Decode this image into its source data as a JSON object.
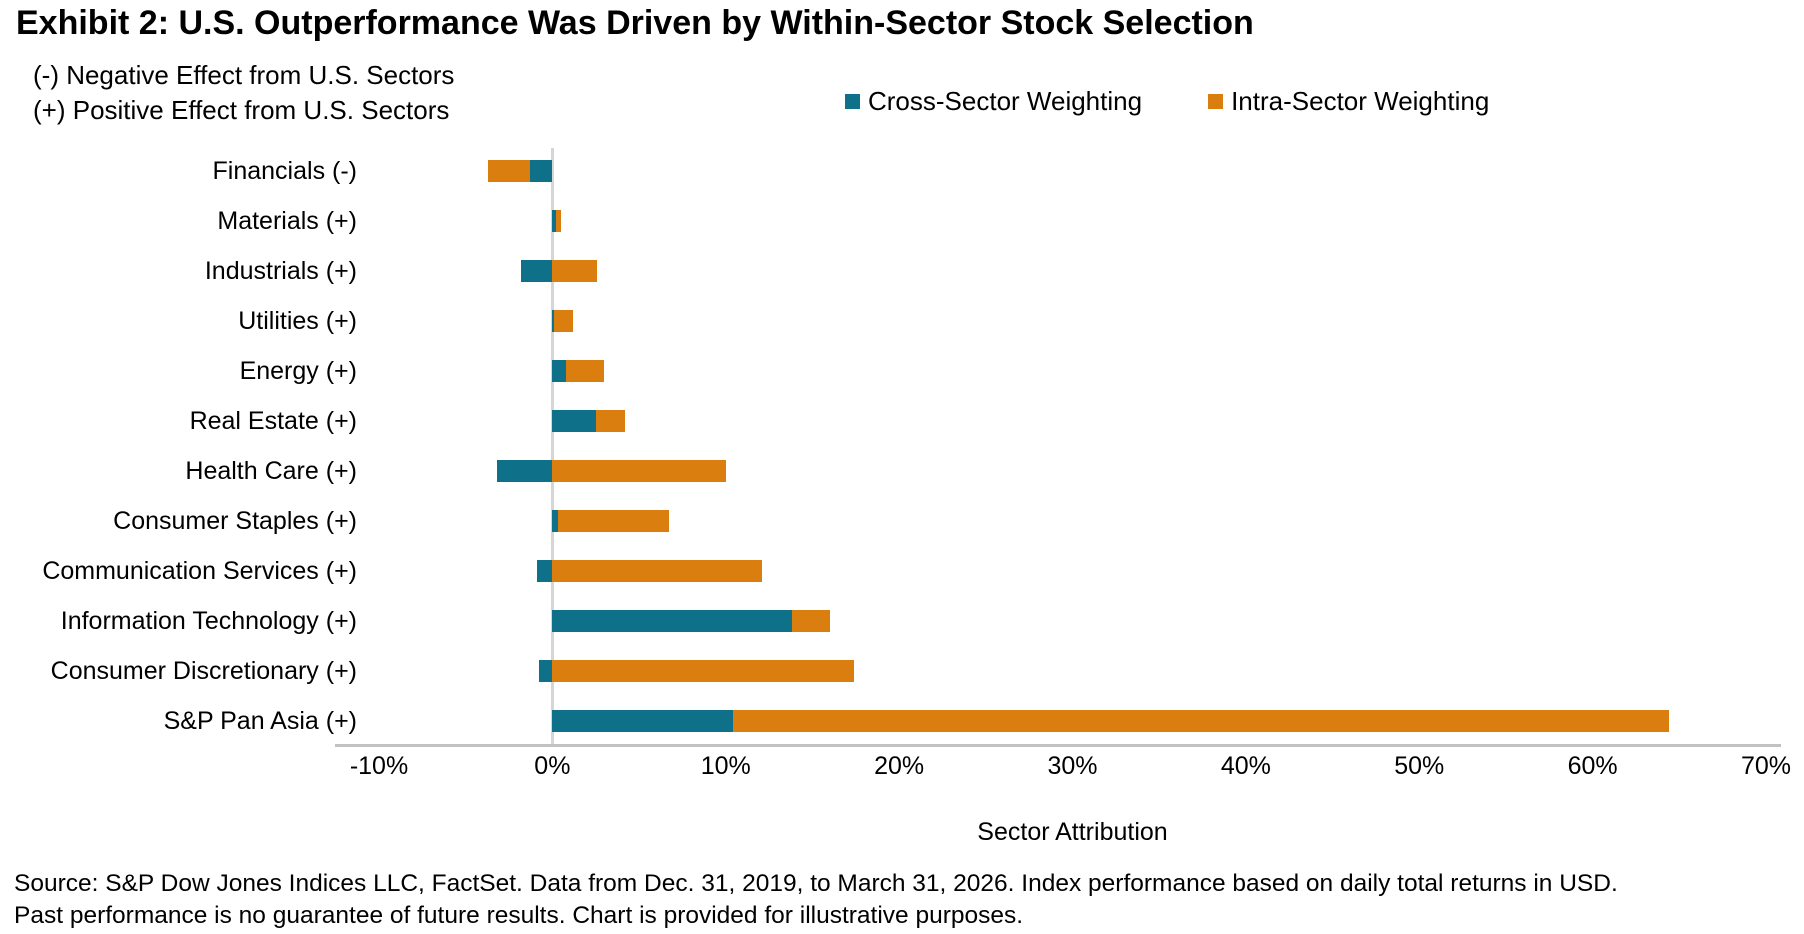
{
  "header": {
    "title": "Exhibit 2: U.S. Outperformance Was Driven by Within-Sector Stock Selection",
    "subtitle_line1": "(-) Negative Effect from U.S. Sectors",
    "subtitle_line2": "(+) Positive Effect from U.S. Sectors"
  },
  "chart_data": {
    "type": "bar",
    "orientation": "horizontal",
    "stacked": true,
    "title": "Exhibit 2: U.S. Outperformance Was Driven by Within-Sector Stock Selection",
    "xlabel": "Sector Attribution",
    "grid": false,
    "legend_position": "top",
    "categories": [
      "Financials (-)",
      "Materials (+)",
      "Industrials (+)",
      "Utilities (+)",
      "Energy (+)",
      "Real Estate (+)",
      "Health Care (+)",
      "Consumer Staples (+)",
      "Communication Services (+)",
      "Information Technology (+)",
      "Consumer Discretionary (+)",
      "S&P Pan Asia (+)"
    ],
    "series": [
      {
        "name": "Cross-Sector Weighting",
        "color": "#0e7189",
        "values": [
          -1.3,
          0.2,
          -1.8,
          0.1,
          0.8,
          2.5,
          -3.2,
          0.3,
          -0.9,
          13.8,
          -0.8,
          10.4
        ]
      },
      {
        "name": "Intra-Sector Weighting",
        "color": "#d97e0f",
        "values": [
          -2.4,
          0.3,
          2.6,
          1.1,
          2.2,
          1.7,
          10.0,
          6.4,
          12.1,
          2.2,
          17.4,
          54.0
        ]
      }
    ],
    "x_axis": {
      "min": -10,
      "max": 70,
      "step": 10,
      "suffix": "%",
      "tick_labels": [
        "-10%",
        "0%",
        "10%",
        "20%",
        "30%",
        "40%",
        "50%",
        "60%",
        "70%"
      ]
    }
  },
  "footer": {
    "source_line1": "Source: S&P Dow Jones Indices LLC, FactSet. Data from Dec. 31, 2019, to March 31, 2026. Index performance based on daily total returns in USD.",
    "source_line2": "Past performance is no guarantee of future results. Chart is provided for illustrative purposes."
  }
}
